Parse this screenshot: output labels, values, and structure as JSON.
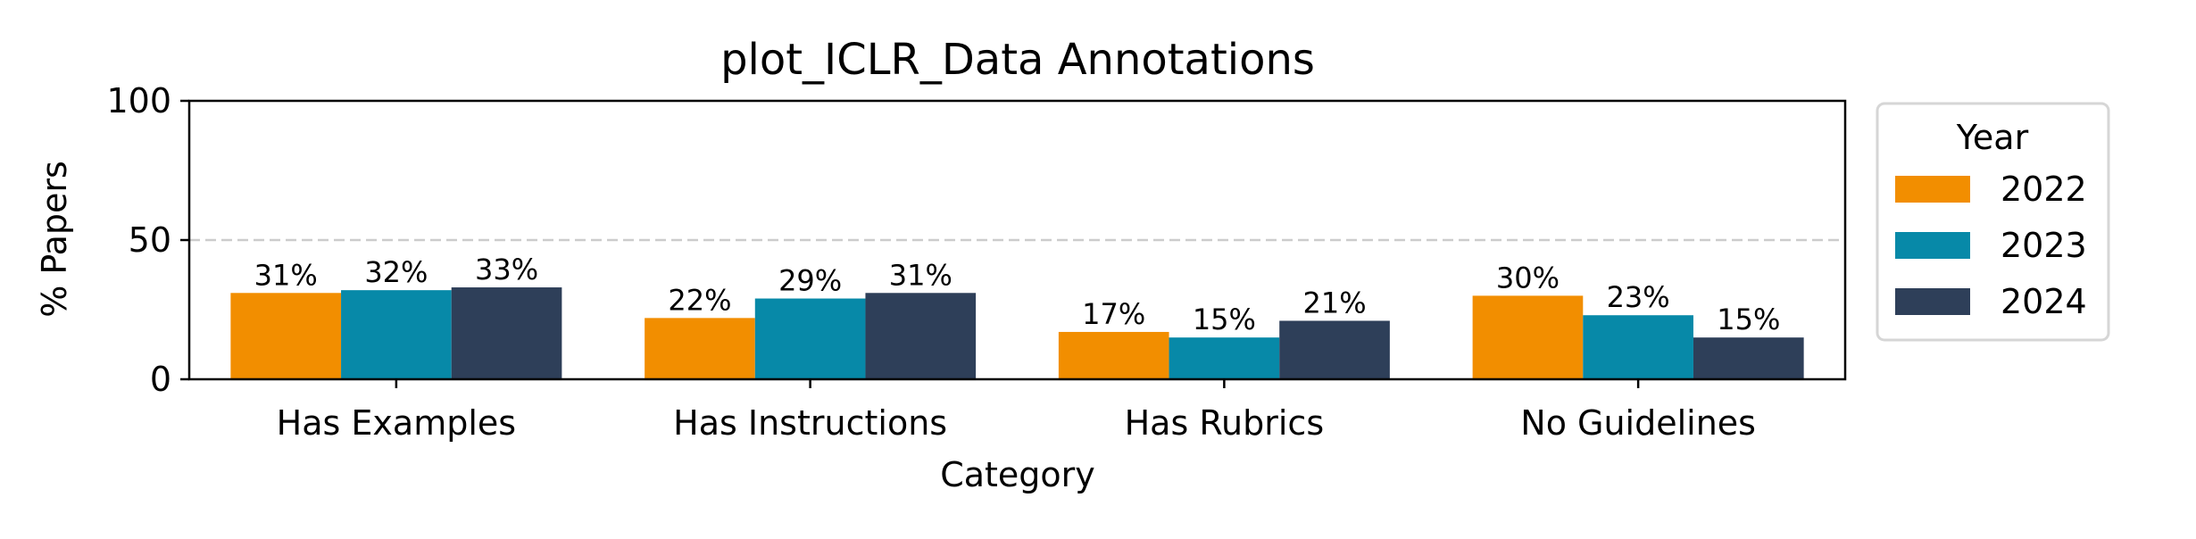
{
  "chart_data": {
    "type": "bar",
    "title": "plot_ICLR_Data Annotations",
    "xlabel": "Category",
    "ylabel": "% Papers",
    "categories": [
      "Has Examples",
      "Has Instructions",
      "Has Rubrics",
      "No Guidelines"
    ],
    "series": [
      {
        "name": "2022",
        "color": "#F28E00",
        "values": [
          31,
          22,
          17,
          30
        ]
      },
      {
        "name": "2023",
        "color": "#0789A8",
        "values": [
          32,
          29,
          15,
          23
        ]
      },
      {
        "name": "2024",
        "color": "#2E3F59",
        "values": [
          33,
          31,
          21,
          15
        ]
      }
    ],
    "ylim": [
      0,
      100
    ],
    "yticks": [
      0,
      50,
      100
    ],
    "reference_line": {
      "y": 50,
      "style": "dashed",
      "color": "#cccccc"
    },
    "data_label_format": "{v}%",
    "legend": {
      "title": "Year",
      "placement": "outside-right"
    },
    "grid": false
  }
}
